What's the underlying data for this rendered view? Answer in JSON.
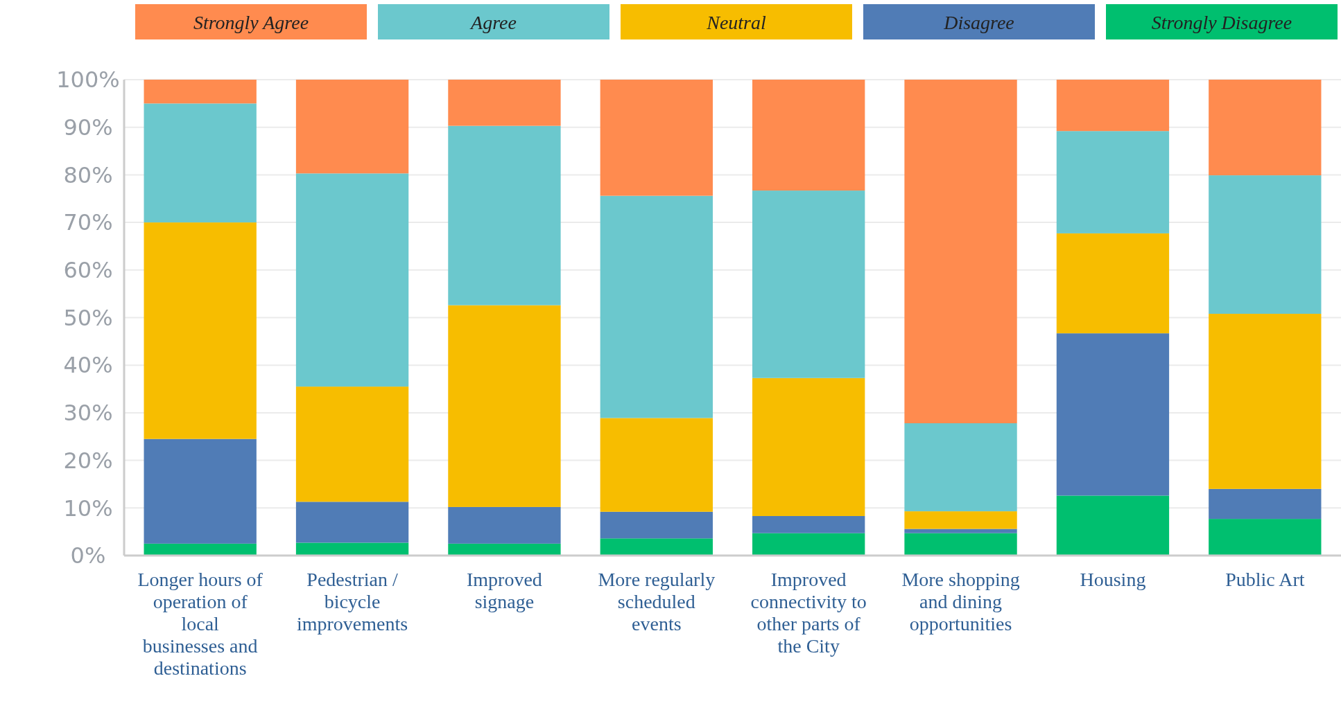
{
  "chart_data": {
    "type": "bar",
    "stacked": true,
    "legend": "top",
    "grid": "y",
    "categories": [
      "Longer hours of operation of local businesses and destinations",
      "Pedestrian / bicycle improvements",
      "Improved signage",
      "More regularly scheduled events",
      "Improved connectivity to other parts of the City",
      "More shopping and dining opportunities",
      "Housing",
      "Public Art"
    ],
    "ylim": [
      0,
      100
    ],
    "yticks": [
      {
        "value": 0,
        "label": "0%"
      },
      {
        "value": 10,
        "label": "10%"
      },
      {
        "value": 20,
        "label": "20%"
      },
      {
        "value": 30,
        "label": "30%"
      },
      {
        "value": 40,
        "label": "40%"
      },
      {
        "value": 50,
        "label": "50%"
      },
      {
        "value": 60,
        "label": "60%"
      },
      {
        "value": 70,
        "label": "70%"
      },
      {
        "value": 80,
        "label": "80%"
      },
      {
        "value": 90,
        "label": "90%"
      },
      {
        "value": 100,
        "label": "100%"
      }
    ],
    "series": [
      {
        "name": "Strongly Disagree",
        "color": "#00bf6f",
        "values": [
          2.5,
          2.7,
          2.5,
          3.6,
          4.7,
          4.7,
          12.6,
          7.7
        ]
      },
      {
        "name": "Disagree",
        "color": "#507cb6",
        "values": [
          22,
          8.6,
          7.7,
          5.6,
          3.6,
          0.9,
          34.1,
          6.3
        ]
      },
      {
        "name": "Neutral",
        "color": "#f7bd00",
        "values": [
          45.5,
          24.2,
          42.4,
          19.7,
          29,
          3.7,
          21,
          36.8
        ]
      },
      {
        "name": "Agree",
        "color": "#6bc8cd",
        "values": [
          25,
          44.8,
          37.7,
          46.7,
          39.4,
          18.5,
          21.5,
          29.1
        ]
      },
      {
        "name": "Strongly Agree",
        "color": "#ff8b4f",
        "values": [
          5,
          19.7,
          9.7,
          24.4,
          23.3,
          72.2,
          10.8,
          20.1
        ]
      }
    ]
  }
}
